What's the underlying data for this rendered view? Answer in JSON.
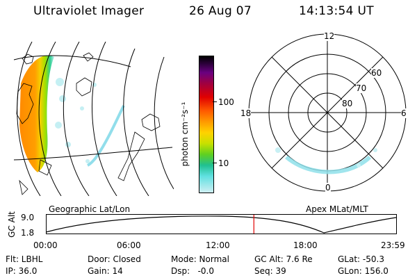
{
  "header": {
    "instrument": "Ultraviolet Imager",
    "date": "26 Aug 07",
    "time": "14:13:54 UT"
  },
  "colorbar": {
    "label": "photon cm⁻²s⁻¹",
    "ticks": [
      "100",
      "10"
    ]
  },
  "polar_plot": {
    "mlt_labels": {
      "top": "12",
      "left": "18",
      "right": "6",
      "bottom": "0"
    },
    "lat_labels": [
      "60",
      "70",
      "80"
    ]
  },
  "panel_labels": {
    "left": "Geographic Lat/Lon",
    "right": "Apex MLat/MLT"
  },
  "altitude_plot": {
    "axis_label": "GC Alt",
    "y_ticks": [
      "9.0",
      "1.8"
    ],
    "x_ticks": [
      "00:00",
      "06:00",
      "12:00",
      "18:00",
      "23:59"
    ],
    "current_time_fraction": 0.593,
    "colors": {
      "marker": "#e00000",
      "curve": "#000000"
    }
  },
  "info": {
    "row1": [
      {
        "label": "Flt: LBHL"
      },
      {
        "label": "Door: Closed"
      },
      {
        "label": "Mode: Normal"
      },
      {
        "label": "GC Alt: 7.6 Re"
      },
      {
        "label": "GLat: -50.3"
      }
    ],
    "row2": [
      {
        "label": "IP: 36.0"
      },
      {
        "label": "Gain: 14"
      },
      {
        "label": "Dsp:   -0.0"
      },
      {
        "label": "Seq: 39"
      },
      {
        "label": "GLon: 156.0"
      }
    ]
  }
}
